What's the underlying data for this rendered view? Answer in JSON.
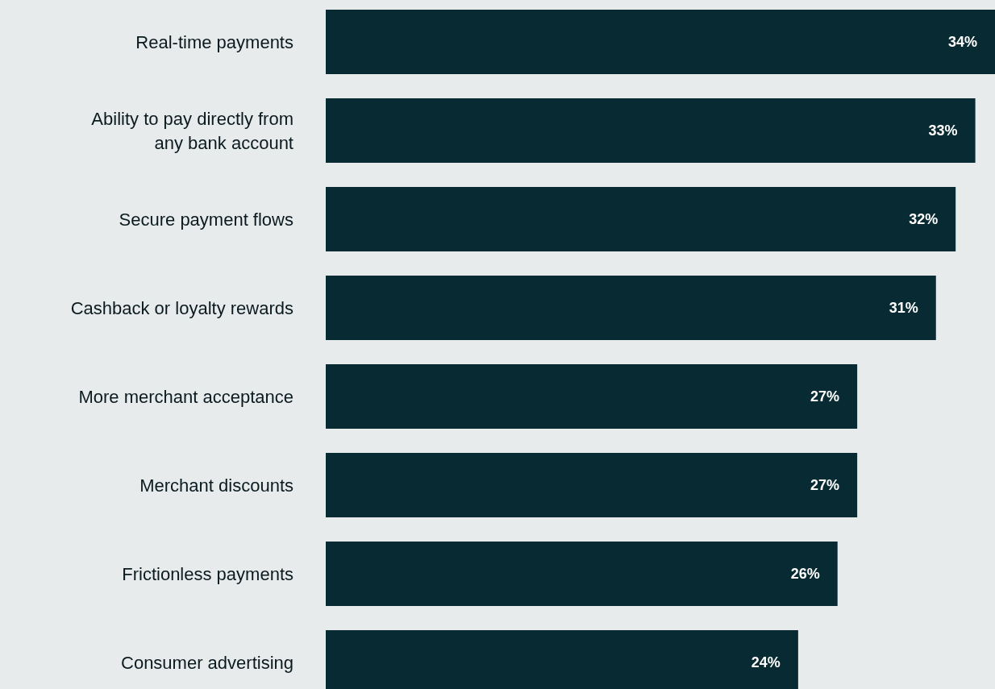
{
  "chart_data": {
    "type": "bar",
    "orientation": "horizontal",
    "categories": [
      "Real-time payments",
      "Ability to pay directly from any bank account",
      "Secure payment flows",
      "Cashback or loyalty rewards",
      "More merchant acceptance",
      "Merchant discounts",
      "Frictionless payments",
      "Consumer advertising"
    ],
    "values": [
      34,
      33,
      32,
      31,
      27,
      27,
      26,
      24
    ],
    "value_labels": [
      "34%",
      "33%",
      "32%",
      "31%",
      "27%",
      "27%",
      "26%",
      "24%"
    ],
    "color": "#082a32"
  }
}
